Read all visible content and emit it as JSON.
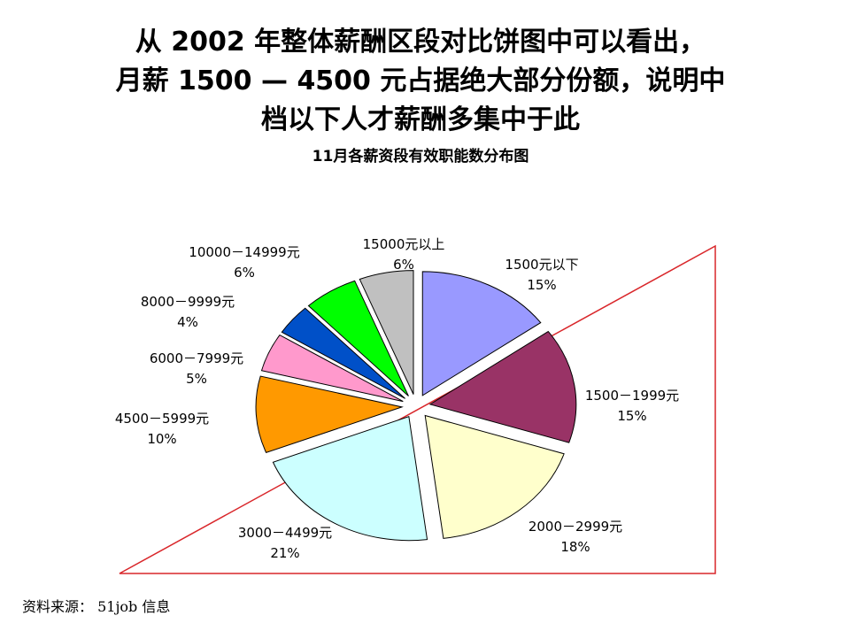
{
  "headline": {
    "line1": "从 2002 年整体薪酬区段对比饼图中可以看出，",
    "line2": "月薪 1500 — 4500 元占据绝大部分份额，说明中",
    "line3": "档以下人才薪酬多集中于此"
  },
  "source": "资料来源： 51job 信息",
  "highlight_color": "#d9262a",
  "chart_data": {
    "type": "pie",
    "title": "11月各薪资段有效职能数分布图",
    "slices": [
      {
        "label": "1500元以下",
        "pct_label": "15%",
        "value": 15,
        "color": "#9999ff"
      },
      {
        "label": "1500－1999元",
        "pct_label": "15%",
        "value": 15,
        "color": "#993366"
      },
      {
        "label": "2000－2999元",
        "pct_label": "18%",
        "value": 18,
        "color": "#ffffcc"
      },
      {
        "label": "3000－4499元",
        "pct_label": "21%",
        "value": 21,
        "color": "#ccffff"
      },
      {
        "label": "4500－5999元",
        "pct_label": "10%",
        "value": 10,
        "color": "#ff9900"
      },
      {
        "label": "6000－7999元",
        "pct_label": "5%",
        "value": 5,
        "color": "#ff99cc"
      },
      {
        "label": "8000－9999元",
        "pct_label": "4%",
        "value": 4,
        "color": "#0050c8"
      },
      {
        "label": "10000－14999元",
        "pct_label": "6%",
        "value": 6,
        "color": "#00ff00"
      },
      {
        "label": "15000元以上",
        "pct_label": "6%",
        "value": 6,
        "color": "#c0c0c0"
      }
    ]
  }
}
